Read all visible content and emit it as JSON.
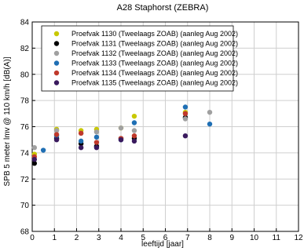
{
  "chart_data": {
    "type": "scatter",
    "title": "A28 Staphorst (ZEBRA)",
    "xlabel": "leeftijd [jaar]",
    "ylabel": "SPB 5 meter lmv @ 110 km/h [dB(A)]",
    "xlim": [
      0,
      12
    ],
    "ylim": [
      68,
      84
    ],
    "xticks": [
      0,
      1,
      2,
      3,
      4,
      5,
      6,
      7,
      8,
      9,
      10,
      11,
      12
    ],
    "yticks": [
      68,
      70,
      72,
      74,
      76,
      78,
      80,
      82,
      84
    ],
    "grid": true,
    "legend_position": "top-left",
    "series": [
      {
        "name": "Proefvak 1130 (Tweelaags ZOAB) (aanleg Aug 2002)",
        "color": "#c8c800",
        "points": [
          [
            0.1,
            73.9
          ],
          [
            1.1,
            75.8
          ],
          [
            2.2,
            75.7
          ],
          [
            2.9,
            75.8
          ],
          [
            4.0,
            75.9
          ],
          [
            4.6,
            76.8
          ],
          [
            6.9,
            77.1
          ]
        ]
      },
      {
        "name": "Proefvak 1131 (Tweelaags ZOAB) (aanleg Aug 2002)",
        "color": "#000000",
        "points": [
          [
            0.1,
            73.2
          ],
          [
            1.1,
            75.1
          ],
          [
            2.2,
            74.7
          ],
          [
            2.9,
            74.5
          ],
          [
            4.0,
            75.1
          ],
          [
            4.6,
            75.1
          ],
          [
            6.9,
            76.7
          ]
        ]
      },
      {
        "name": "Proefvak 1132 (Tweelaags ZOAB) (aanleg Aug 2002)",
        "color": "#a0a0a0",
        "points": [
          [
            0.1,
            74.4
          ],
          [
            1.1,
            75.7
          ],
          [
            2.2,
            75.5
          ],
          [
            2.9,
            75.6
          ],
          [
            4.0,
            75.9
          ],
          [
            4.6,
            75.7
          ],
          [
            6.9,
            76.6
          ],
          [
            8.0,
            77.1
          ]
        ]
      },
      {
        "name": "Proefvak 1133 (Tweelaags ZOAB) (aanleg Aug 2002)",
        "color": "#1f6fb4",
        "points": [
          [
            0.5,
            74.2
          ],
          [
            1.1,
            75.3
          ],
          [
            2.2,
            74.9
          ],
          [
            2.9,
            75.2
          ],
          [
            4.0,
            75.0
          ],
          [
            4.6,
            76.3
          ],
          [
            6.9,
            77.5
          ],
          [
            8.0,
            76.2
          ]
        ]
      },
      {
        "name": "Proefvak 1134 (Tweelaags ZOAB) (aanleg Aug 2002)",
        "color": "#c0392b",
        "points": [
          [
            0.1,
            73.7
          ],
          [
            1.1,
            75.4
          ],
          [
            2.2,
            75.5
          ],
          [
            2.9,
            74.8
          ],
          [
            4.0,
            75.1
          ],
          [
            4.6,
            75.3
          ],
          [
            6.9,
            77.0
          ]
        ]
      },
      {
        "name": "Proefvak 1135 (Tweelaags ZOAB) (aanleg Aug 2002)",
        "color": "#3a1a5e",
        "points": [
          [
            0.1,
            73.5
          ],
          [
            1.1,
            75.0
          ],
          [
            2.2,
            74.4
          ],
          [
            2.9,
            74.4
          ],
          [
            4.0,
            75.0
          ],
          [
            4.6,
            74.9
          ],
          [
            6.9,
            75.3
          ]
        ]
      }
    ]
  }
}
